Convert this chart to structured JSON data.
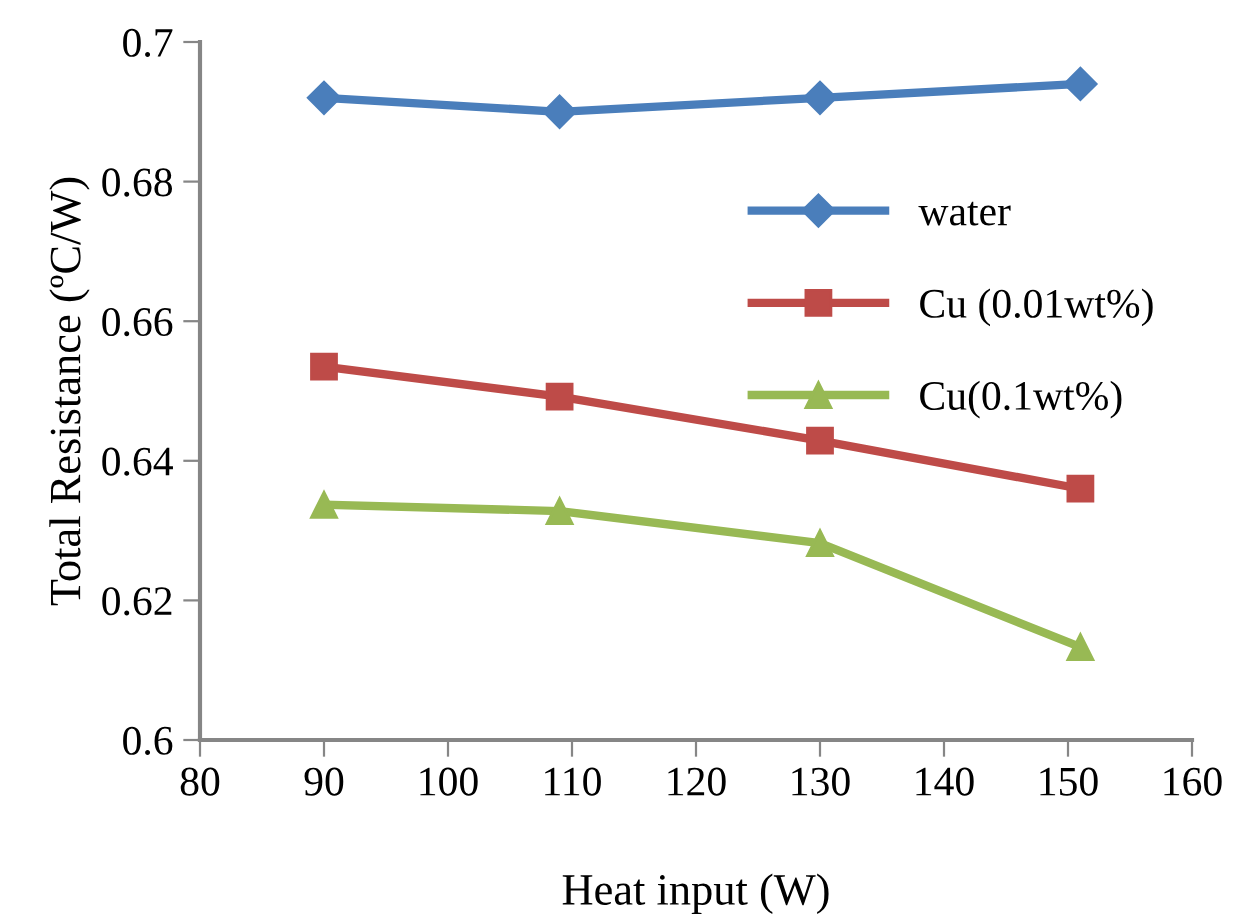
{
  "chart_data": {
    "type": "line",
    "xlabel": "Heat input (W)",
    "ylabel": "Total Resistance (ºC/W)",
    "x": [
      90,
      109,
      130,
      151
    ],
    "series": [
      {
        "name": "water",
        "color": "#4a7ebb",
        "marker": "diamond",
        "values": [
          0.692,
          0.69,
          0.692,
          0.694
        ]
      },
      {
        "name": "Cu (0.01wt%)",
        "color": "#be4b48",
        "marker": "square",
        "values": [
          0.6535,
          0.6492,
          0.6429,
          0.636
        ]
      },
      {
        "name": "Cu(0.1wt%)",
        "color": "#98b954",
        "marker": "triangle",
        "values": [
          0.6337,
          0.6328,
          0.6282,
          0.6133
        ]
      }
    ],
    "xlim": [
      80,
      160
    ],
    "xticks": [
      80,
      90,
      100,
      110,
      120,
      130,
      140,
      150,
      160
    ],
    "ylim": [
      0.6,
      0.7
    ],
    "yticks": [
      0.6,
      0.62,
      0.64,
      0.66,
      0.68,
      0.7
    ],
    "grid": false,
    "legend": "right",
    "line_style": "solid"
  }
}
